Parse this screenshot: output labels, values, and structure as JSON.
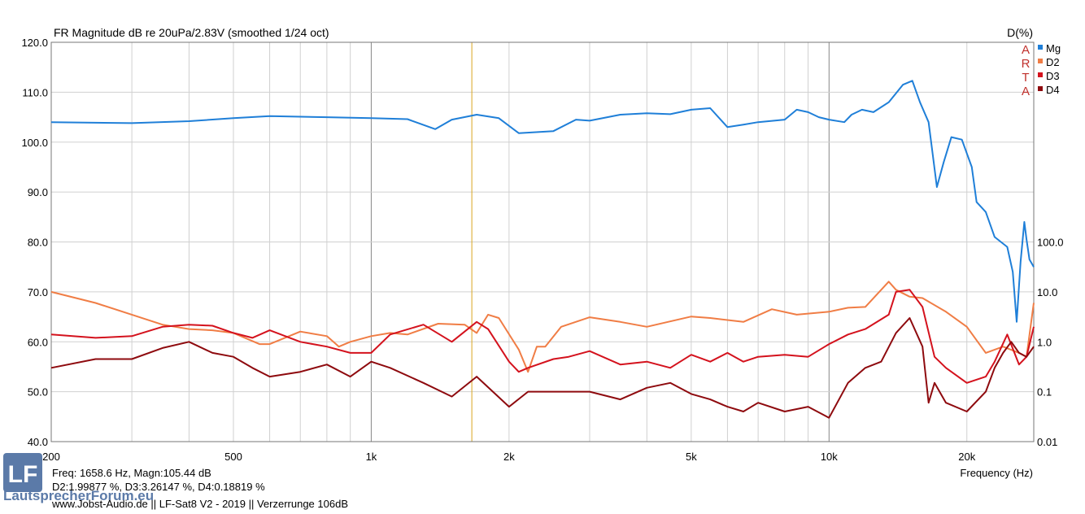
{
  "chart_data": {
    "type": "line",
    "title": "FR Magnitude dB re 20uPa/2.83V (smoothed 1/24 oct)",
    "right_axis_title": "D(%)",
    "xlabel": "Frequency (Hz)",
    "x_scale": "log",
    "xlim": [
      200,
      28000
    ],
    "ylim_left": [
      40,
      120
    ],
    "ylim_right_log": [
      0.01,
      100
    ],
    "x_ticks": [
      "200",
      "500",
      "1k",
      "2k",
      "5k",
      "10k",
      "20k"
    ],
    "y_ticks_left": [
      "120.0",
      "110.0",
      "100.0",
      "90.0",
      "80.0",
      "70.0",
      "60.0",
      "50.0",
      "40.0"
    ],
    "y_ticks_right": [
      "100.0",
      "10.0",
      "1.0",
      "0.1",
      "0.01"
    ],
    "cursor_freq": 1658.6,
    "arta_letters": [
      "A",
      "R",
      "T",
      "A"
    ],
    "legend_position": "top-right",
    "series": [
      {
        "name": "Mg",
        "color": "#1f7fd8",
        "axis": "left",
        "points": [
          [
            200,
            104
          ],
          [
            300,
            103.8
          ],
          [
            400,
            104.2
          ],
          [
            500,
            104.8
          ],
          [
            600,
            105.2
          ],
          [
            800,
            105
          ],
          [
            1000,
            104.8
          ],
          [
            1200,
            104.6
          ],
          [
            1380,
            102.6
          ],
          [
            1500,
            104.5
          ],
          [
            1700,
            105.5
          ],
          [
            1900,
            104.8
          ],
          [
            2100,
            101.8
          ],
          [
            2500,
            102.2
          ],
          [
            2800,
            104.5
          ],
          [
            3000,
            104.3
          ],
          [
            3500,
            105.5
          ],
          [
            4000,
            105.8
          ],
          [
            4500,
            105.6
          ],
          [
            5000,
            106.5
          ],
          [
            5500,
            106.8
          ],
          [
            6000,
            103
          ],
          [
            6500,
            103.5
          ],
          [
            7000,
            104
          ],
          [
            8000,
            104.5
          ],
          [
            8500,
            106.5
          ],
          [
            9000,
            106
          ],
          [
            9500,
            105
          ],
          [
            10000,
            104.5
          ],
          [
            10800,
            104
          ],
          [
            11200,
            105.5
          ],
          [
            11800,
            106.5
          ],
          [
            12500,
            106
          ],
          [
            13500,
            108
          ],
          [
            14500,
            111.5
          ],
          [
            15200,
            112.3
          ],
          [
            15800,
            108
          ],
          [
            16500,
            104
          ],
          [
            17200,
            91
          ],
          [
            17800,
            96
          ],
          [
            18500,
            101
          ],
          [
            19500,
            100.5
          ],
          [
            20500,
            95
          ],
          [
            21000,
            88
          ],
          [
            22000,
            86
          ],
          [
            23000,
            81
          ],
          [
            24500,
            79
          ],
          [
            25200,
            74
          ],
          [
            25700,
            64
          ],
          [
            26200,
            76
          ],
          [
            26700,
            84
          ],
          [
            27000,
            80.5
          ],
          [
            27400,
            76.5
          ],
          [
            28000,
            75
          ]
        ]
      },
      {
        "name": "D2",
        "color": "#f07d45",
        "axis": "right",
        "points": [
          [
            200,
            10
          ],
          [
            250,
            6
          ],
          [
            300,
            3.5
          ],
          [
            350,
            2.2
          ],
          [
            400,
            1.8
          ],
          [
            450,
            1.7
          ],
          [
            500,
            1.5
          ],
          [
            570,
            0.9
          ],
          [
            600,
            0.9
          ],
          [
            700,
            1.6
          ],
          [
            800,
            1.3
          ],
          [
            850,
            0.8
          ],
          [
            900,
            1.0
          ],
          [
            1000,
            1.3
          ],
          [
            1100,
            1.5
          ],
          [
            1200,
            1.4
          ],
          [
            1400,
            2.3
          ],
          [
            1600,
            2.2
          ],
          [
            1700,
            1.5
          ],
          [
            1800,
            3.5
          ],
          [
            1900,
            3.0
          ],
          [
            2100,
            0.7
          ],
          [
            2200,
            0.25
          ],
          [
            2300,
            0.8
          ],
          [
            2400,
            0.8
          ],
          [
            2600,
            2.0
          ],
          [
            3000,
            3.1
          ],
          [
            3500,
            2.5
          ],
          [
            4000,
            2.0
          ],
          [
            5000,
            3.2
          ],
          [
            5500,
            3.0
          ],
          [
            6500,
            2.5
          ],
          [
            7500,
            4.5
          ],
          [
            8500,
            3.5
          ],
          [
            10000,
            4.0
          ],
          [
            11000,
            4.8
          ],
          [
            12000,
            5.0
          ],
          [
            13500,
            16
          ],
          [
            14000,
            11
          ],
          [
            15000,
            8
          ],
          [
            16000,
            7.5
          ],
          [
            18000,
            4.0
          ],
          [
            20000,
            2.0
          ],
          [
            22000,
            0.6
          ],
          [
            24000,
            0.8
          ],
          [
            26000,
            0.6
          ],
          [
            27000,
            0.5
          ],
          [
            28000,
            6
          ]
        ]
      },
      {
        "name": "D3",
        "color": "#d4121d",
        "axis": "right",
        "points": [
          [
            200,
            1.4
          ],
          [
            250,
            1.2
          ],
          [
            300,
            1.3
          ],
          [
            350,
            2.0
          ],
          [
            400,
            2.2
          ],
          [
            450,
            2.1
          ],
          [
            500,
            1.5
          ],
          [
            550,
            1.2
          ],
          [
            600,
            1.7
          ],
          [
            700,
            1.0
          ],
          [
            800,
            0.8
          ],
          [
            900,
            0.6
          ],
          [
            1000,
            0.6
          ],
          [
            1100,
            1.4
          ],
          [
            1300,
            2.2
          ],
          [
            1500,
            1.0
          ],
          [
            1700,
            2.5
          ],
          [
            1800,
            1.8
          ],
          [
            2000,
            0.4
          ],
          [
            2100,
            0.25
          ],
          [
            2200,
            0.3
          ],
          [
            2500,
            0.45
          ],
          [
            2700,
            0.5
          ],
          [
            3000,
            0.65
          ],
          [
            3500,
            0.35
          ],
          [
            4000,
            0.4
          ],
          [
            4500,
            0.3
          ],
          [
            5000,
            0.55
          ],
          [
            5500,
            0.4
          ],
          [
            6000,
            0.6
          ],
          [
            6500,
            0.4
          ],
          [
            7000,
            0.5
          ],
          [
            8000,
            0.55
          ],
          [
            9000,
            0.5
          ],
          [
            10000,
            0.9
          ],
          [
            11000,
            1.4
          ],
          [
            12000,
            1.8
          ],
          [
            13500,
            3.5
          ],
          [
            14000,
            10
          ],
          [
            15000,
            11
          ],
          [
            16000,
            5.0
          ],
          [
            17000,
            0.5
          ],
          [
            18000,
            0.3
          ],
          [
            20000,
            0.15
          ],
          [
            22000,
            0.2
          ],
          [
            23000,
            0.4
          ],
          [
            24500,
            1.4
          ],
          [
            26000,
            0.35
          ],
          [
            27000,
            0.5
          ],
          [
            28000,
            2.0
          ]
        ]
      },
      {
        "name": "D4",
        "color": "#8e0a0e",
        "axis": "right",
        "points": [
          [
            200,
            0.3
          ],
          [
            250,
            0.45
          ],
          [
            300,
            0.45
          ],
          [
            350,
            0.75
          ],
          [
            400,
            1.0
          ],
          [
            450,
            0.6
          ],
          [
            500,
            0.5
          ],
          [
            550,
            0.3
          ],
          [
            600,
            0.2
          ],
          [
            700,
            0.25
          ],
          [
            800,
            0.35
          ],
          [
            900,
            0.2
          ],
          [
            1000,
            0.4
          ],
          [
            1100,
            0.3
          ],
          [
            1300,
            0.15
          ],
          [
            1500,
            0.08
          ],
          [
            1700,
            0.2
          ],
          [
            2000,
            0.05
          ],
          [
            2200,
            0.1
          ],
          [
            2500,
            0.1
          ],
          [
            3000,
            0.1
          ],
          [
            3500,
            0.07
          ],
          [
            4000,
            0.12
          ],
          [
            4500,
            0.15
          ],
          [
            5000,
            0.09
          ],
          [
            5500,
            0.07
          ],
          [
            6000,
            0.05
          ],
          [
            6500,
            0.04
          ],
          [
            7000,
            0.06
          ],
          [
            8000,
            0.04
          ],
          [
            9000,
            0.05
          ],
          [
            10000,
            0.03
          ],
          [
            11000,
            0.15
          ],
          [
            12000,
            0.3
          ],
          [
            13000,
            0.4
          ],
          [
            14000,
            1.5
          ],
          [
            15000,
            3.0
          ],
          [
            16000,
            0.8
          ],
          [
            16500,
            0.06
          ],
          [
            17000,
            0.15
          ],
          [
            18000,
            0.06
          ],
          [
            20000,
            0.04
          ],
          [
            22000,
            0.1
          ],
          [
            23000,
            0.3
          ],
          [
            24000,
            0.6
          ],
          [
            25000,
            1.0
          ],
          [
            26000,
            0.6
          ],
          [
            27000,
            0.5
          ],
          [
            28000,
            0.8
          ]
        ]
      }
    ]
  },
  "readout": {
    "line1": "Freq: 1658.6 Hz, Magn:105.44 dB",
    "line2": "D2:1.99877 %, D3:3.26147 %, D4:0.18819 %",
    "footer": "www.Jobst-Audio.de  ||  LF-Sat8 V2 - 2019  ||  Verzerrunge 106dB"
  },
  "logo": {
    "text": "LF",
    "brand": "LautsprecherForum.eu",
    "color": "#5b7aa8"
  }
}
